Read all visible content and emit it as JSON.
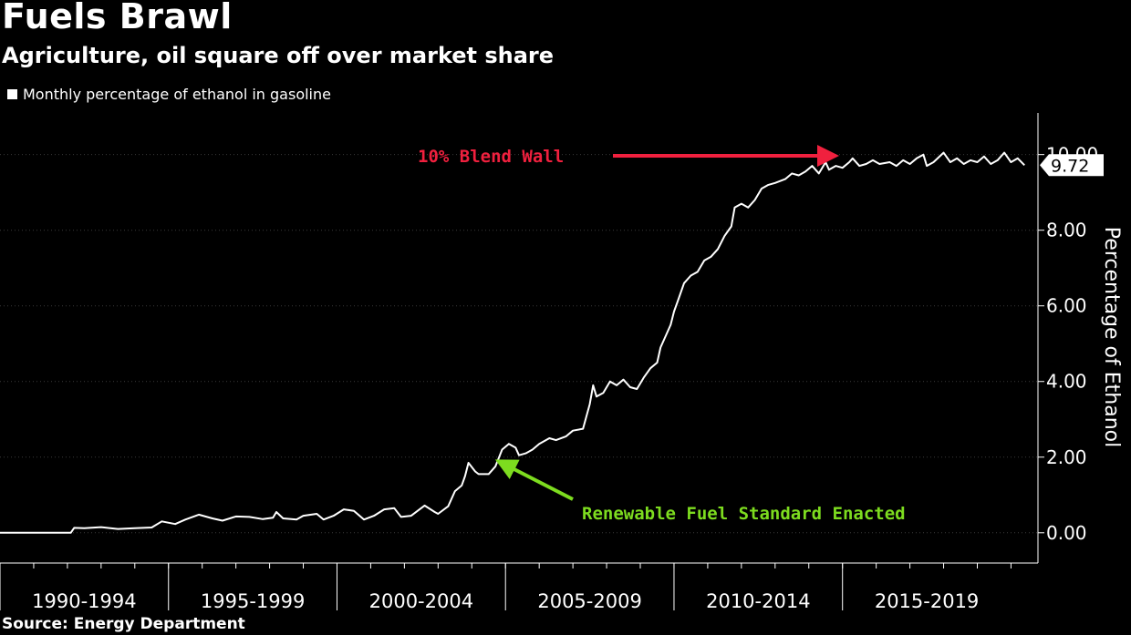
{
  "chart_data": {
    "type": "line",
    "title": "Fuels Brawl",
    "subtitle": "Agriculture, oil square off over market share",
    "source": "Source: Energy Department",
    "ylabel": "Percentage of Ethanol",
    "ylim": [
      -0.8,
      11.1
    ],
    "yticks": [
      {
        "value": 0,
        "label": "0.00"
      },
      {
        "value": 2,
        "label": "2.00"
      },
      {
        "value": 4,
        "label": "4.00"
      },
      {
        "value": 6,
        "label": "6.00"
      },
      {
        "value": 8,
        "label": "8.00"
      },
      {
        "value": 10,
        "label": "10.00"
      }
    ],
    "xlim": [
      1990.0,
      2020.8
    ],
    "x_categories": [
      {
        "label": "1990-1994",
        "start": 1990,
        "end": 1995
      },
      {
        "label": "1995-1999",
        "start": 1995,
        "end": 2000
      },
      {
        "label": "2000-2004",
        "start": 2000,
        "end": 2005
      },
      {
        "label": "2005-2009",
        "start": 2005,
        "end": 2010
      },
      {
        "label": "2010-2014",
        "start": 2010,
        "end": 2015
      },
      {
        "label": "2015-2019",
        "start": 2015,
        "end": 2020
      }
    ],
    "grid": "y",
    "legend_position": "top-left",
    "series": [
      {
        "name": "Monthly percentage of ethanol in gasoline",
        "color": "#ffffff",
        "points": [
          [
            1990.0,
            0.0
          ],
          [
            1991.0,
            0.0
          ],
          [
            1992.0,
            0.0
          ],
          [
            1992.1,
            0.0
          ],
          [
            1992.2,
            0.13
          ],
          [
            1992.5,
            0.12
          ],
          [
            1993.0,
            0.15
          ],
          [
            1993.5,
            0.1
          ],
          [
            1994.0,
            0.12
          ],
          [
            1994.5,
            0.14
          ],
          [
            1994.8,
            0.3
          ],
          [
            1995.2,
            0.23
          ],
          [
            1995.5,
            0.35
          ],
          [
            1995.9,
            0.48
          ],
          [
            1996.3,
            0.38
          ],
          [
            1996.6,
            0.32
          ],
          [
            1997.0,
            0.43
          ],
          [
            1997.4,
            0.42
          ],
          [
            1997.8,
            0.36
          ],
          [
            1998.1,
            0.4
          ],
          [
            1998.2,
            0.55
          ],
          [
            1998.4,
            0.38
          ],
          [
            1998.8,
            0.35
          ],
          [
            1999.0,
            0.45
          ],
          [
            1999.4,
            0.5
          ],
          [
            1999.6,
            0.35
          ],
          [
            1999.9,
            0.45
          ],
          [
            2000.2,
            0.62
          ],
          [
            2000.5,
            0.58
          ],
          [
            2000.8,
            0.35
          ],
          [
            2001.1,
            0.45
          ],
          [
            2001.4,
            0.62
          ],
          [
            2001.7,
            0.65
          ],
          [
            2001.9,
            0.42
          ],
          [
            2002.2,
            0.45
          ],
          [
            2002.6,
            0.72
          ],
          [
            2002.9,
            0.55
          ],
          [
            2003.0,
            0.5
          ],
          [
            2003.3,
            0.7
          ],
          [
            2003.5,
            1.1
          ],
          [
            2003.7,
            1.25
          ],
          [
            2003.8,
            1.5
          ],
          [
            2003.9,
            1.85
          ],
          [
            2004.1,
            1.62
          ],
          [
            2004.2,
            1.55
          ],
          [
            2004.5,
            1.55
          ],
          [
            2004.7,
            1.75
          ],
          [
            2004.9,
            2.2
          ],
          [
            2005.1,
            2.35
          ],
          [
            2005.3,
            2.25
          ],
          [
            2005.4,
            2.05
          ],
          [
            2005.6,
            2.1
          ],
          [
            2005.8,
            2.2
          ],
          [
            2006.0,
            2.35
          ],
          [
            2006.3,
            2.5
          ],
          [
            2006.5,
            2.45
          ],
          [
            2006.8,
            2.55
          ],
          [
            2007.0,
            2.7
          ],
          [
            2007.3,
            2.75
          ],
          [
            2007.5,
            3.4
          ],
          [
            2007.6,
            3.9
          ],
          [
            2007.7,
            3.6
          ],
          [
            2007.9,
            3.7
          ],
          [
            2008.1,
            4.0
          ],
          [
            2008.3,
            3.9
          ],
          [
            2008.5,
            4.05
          ],
          [
            2008.7,
            3.85
          ],
          [
            2008.9,
            3.8
          ],
          [
            2009.1,
            4.1
          ],
          [
            2009.3,
            4.35
          ],
          [
            2009.5,
            4.5
          ],
          [
            2009.6,
            4.9
          ],
          [
            2009.7,
            5.1
          ],
          [
            2009.9,
            5.5
          ],
          [
            2010.0,
            5.85
          ],
          [
            2010.1,
            6.1
          ],
          [
            2010.3,
            6.6
          ],
          [
            2010.5,
            6.8
          ],
          [
            2010.7,
            6.9
          ],
          [
            2010.9,
            7.2
          ],
          [
            2011.1,
            7.3
          ],
          [
            2011.3,
            7.5
          ],
          [
            2011.5,
            7.85
          ],
          [
            2011.7,
            8.1
          ],
          [
            2011.8,
            8.6
          ],
          [
            2012.0,
            8.7
          ],
          [
            2012.2,
            8.6
          ],
          [
            2012.4,
            8.8
          ],
          [
            2012.6,
            9.1
          ],
          [
            2012.8,
            9.2
          ],
          [
            2013.0,
            9.25
          ],
          [
            2013.3,
            9.35
          ],
          [
            2013.5,
            9.5
          ],
          [
            2013.7,
            9.45
          ],
          [
            2013.9,
            9.55
          ],
          [
            2014.1,
            9.7
          ],
          [
            2014.3,
            9.5
          ],
          [
            2014.5,
            9.8
          ],
          [
            2014.6,
            9.6
          ],
          [
            2014.8,
            9.7
          ],
          [
            2015.0,
            9.65
          ],
          [
            2015.2,
            9.8
          ],
          [
            2015.3,
            9.9
          ],
          [
            2015.5,
            9.7
          ],
          [
            2015.7,
            9.75
          ],
          [
            2015.9,
            9.85
          ],
          [
            2016.1,
            9.75
          ],
          [
            2016.4,
            9.8
          ],
          [
            2016.6,
            9.7
          ],
          [
            2016.8,
            9.85
          ],
          [
            2017.0,
            9.75
          ],
          [
            2017.2,
            9.9
          ],
          [
            2017.4,
            10.0
          ],
          [
            2017.5,
            9.7
          ],
          [
            2017.7,
            9.8
          ],
          [
            2018.0,
            10.05
          ],
          [
            2018.2,
            9.8
          ],
          [
            2018.4,
            9.9
          ],
          [
            2018.6,
            9.75
          ],
          [
            2018.8,
            9.85
          ],
          [
            2019.0,
            9.8
          ],
          [
            2019.2,
            9.95
          ],
          [
            2019.4,
            9.75
          ],
          [
            2019.6,
            9.85
          ],
          [
            2019.8,
            10.05
          ],
          [
            2020.0,
            9.8
          ],
          [
            2020.2,
            9.9
          ],
          [
            2020.4,
            9.72
          ]
        ],
        "last_value_label": "9.72"
      }
    ],
    "annotations": [
      {
        "text": "10% Blend Wall",
        "color": "#f0203e"
      },
      {
        "text": "Renewable Fuel Standard Enacted",
        "color": "#7ddc1f"
      }
    ]
  }
}
